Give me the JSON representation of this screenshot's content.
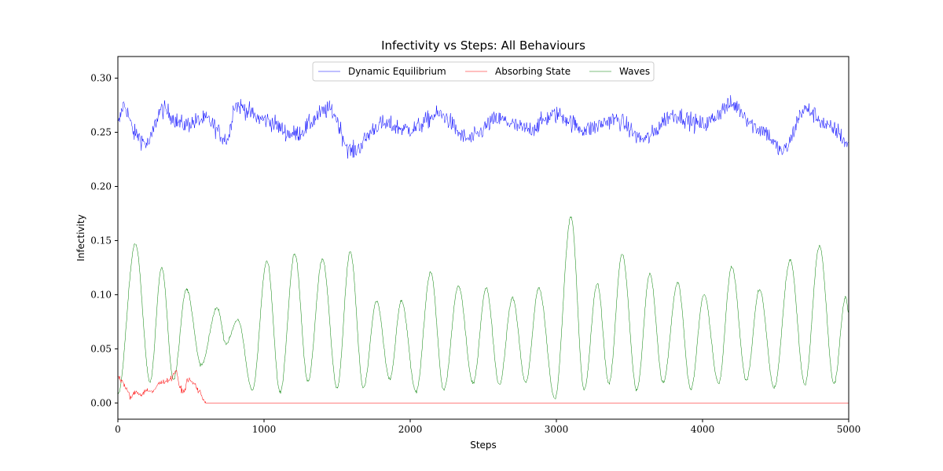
{
  "chart_data": {
    "type": "line",
    "title": "Infectivity vs Steps: All Behaviours",
    "xlabel": "Steps",
    "ylabel": "Infectivity",
    "xlim": [
      0,
      5000
    ],
    "ylim": [
      -0.015,
      0.32
    ],
    "xticks": [
      0,
      1000,
      2000,
      3000,
      4000,
      5000
    ],
    "yticks": [
      0.0,
      0.05,
      0.1,
      0.15,
      0.2,
      0.25,
      0.3
    ],
    "xtick_labels": [
      "0",
      "1000",
      "2000",
      "3000",
      "4000",
      "5000"
    ],
    "ytick_labels": [
      "0.00",
      "0.05",
      "0.10",
      "0.15",
      "0.20",
      "0.25",
      "0.30"
    ],
    "legend": {
      "placement": "upper-center",
      "columns": 3
    },
    "grid": false,
    "series": [
      {
        "name": "Dynamic Equilibrium",
        "color": "#0000ff",
        "baseline": 0.255,
        "x": [
          0,
          40,
          120,
          200,
          300,
          450,
          600,
          750,
          800,
          1000,
          1200,
          1450,
          1600,
          1800,
          2000,
          2200,
          2400,
          2600,
          2800,
          3000,
          3200,
          3400,
          3600,
          3800,
          4000,
          4200,
          4400,
          4550,
          4700,
          4900,
          5000
        ],
        "y": [
          0.26,
          0.3,
          0.24,
          0.22,
          0.29,
          0.26,
          0.27,
          0.23,
          0.3,
          0.27,
          0.24,
          0.29,
          0.205,
          0.26,
          0.25,
          0.28,
          0.23,
          0.27,
          0.25,
          0.28,
          0.25,
          0.27,
          0.23,
          0.28,
          0.26,
          0.3,
          0.25,
          0.205,
          0.29,
          0.25,
          0.22
        ]
      },
      {
        "name": "Absorbing State",
        "color": "#ff0000",
        "x": [
          0,
          30,
          60,
          90,
          120,
          160,
          200,
          240,
          280,
          320,
          360,
          400,
          420,
          450,
          480,
          520,
          560,
          590,
          600,
          5000
        ],
        "y": [
          0.025,
          0.02,
          0.012,
          0.005,
          0.01,
          0.008,
          0.012,
          0.01,
          0.018,
          0.02,
          0.022,
          0.03,
          0.015,
          0.01,
          0.022,
          0.018,
          0.01,
          0.003,
          0.0,
          0.0
        ]
      },
      {
        "name": "Waves",
        "color": "#008000",
        "peaks": [
          {
            "x": 120,
            "y": 0.147
          },
          {
            "x": 300,
            "y": 0.125
          },
          {
            "x": 470,
            "y": 0.105
          },
          {
            "x": 680,
            "y": 0.088
          },
          {
            "x": 820,
            "y": 0.077
          },
          {
            "x": 1020,
            "y": 0.131
          },
          {
            "x": 1210,
            "y": 0.138
          },
          {
            "x": 1400,
            "y": 0.133
          },
          {
            "x": 1590,
            "y": 0.14
          },
          {
            "x": 1770,
            "y": 0.094
          },
          {
            "x": 1940,
            "y": 0.094
          },
          {
            "x": 2140,
            "y": 0.121
          },
          {
            "x": 2330,
            "y": 0.108
          },
          {
            "x": 2520,
            "y": 0.106
          },
          {
            "x": 2700,
            "y": 0.097
          },
          {
            "x": 2880,
            "y": 0.106
          },
          {
            "x": 3100,
            "y": 0.172
          },
          {
            "x": 3280,
            "y": 0.11
          },
          {
            "x": 3450,
            "y": 0.138
          },
          {
            "x": 3640,
            "y": 0.119
          },
          {
            "x": 3830,
            "y": 0.111
          },
          {
            "x": 4010,
            "y": 0.1
          },
          {
            "x": 4200,
            "y": 0.126
          },
          {
            "x": 4390,
            "y": 0.105
          },
          {
            "x": 4600,
            "y": 0.132
          },
          {
            "x": 4800,
            "y": 0.145
          },
          {
            "x": 4980,
            "y": 0.098
          }
        ],
        "troughs": [
          {
            "x": 0,
            "y": 0.008
          },
          {
            "x": 220,
            "y": 0.02
          },
          {
            "x": 380,
            "y": 0.022
          },
          {
            "x": 570,
            "y": 0.035
          },
          {
            "x": 740,
            "y": 0.055
          },
          {
            "x": 920,
            "y": 0.012
          },
          {
            "x": 1110,
            "y": 0.01
          },
          {
            "x": 1300,
            "y": 0.02
          },
          {
            "x": 1500,
            "y": 0.014
          },
          {
            "x": 1680,
            "y": 0.014
          },
          {
            "x": 1860,
            "y": 0.022
          },
          {
            "x": 2040,
            "y": 0.01
          },
          {
            "x": 2230,
            "y": 0.012
          },
          {
            "x": 2430,
            "y": 0.018
          },
          {
            "x": 2610,
            "y": 0.017
          },
          {
            "x": 2790,
            "y": 0.019
          },
          {
            "x": 2990,
            "y": 0.004
          },
          {
            "x": 3190,
            "y": 0.012
          },
          {
            "x": 3360,
            "y": 0.018
          },
          {
            "x": 3550,
            "y": 0.012
          },
          {
            "x": 3730,
            "y": 0.019
          },
          {
            "x": 3920,
            "y": 0.013
          },
          {
            "x": 4110,
            "y": 0.018
          },
          {
            "x": 4300,
            "y": 0.021
          },
          {
            "x": 4490,
            "y": 0.014
          },
          {
            "x": 4700,
            "y": 0.017
          },
          {
            "x": 4900,
            "y": 0.018
          },
          {
            "x": 5000,
            "y": 0.083
          }
        ]
      }
    ]
  }
}
